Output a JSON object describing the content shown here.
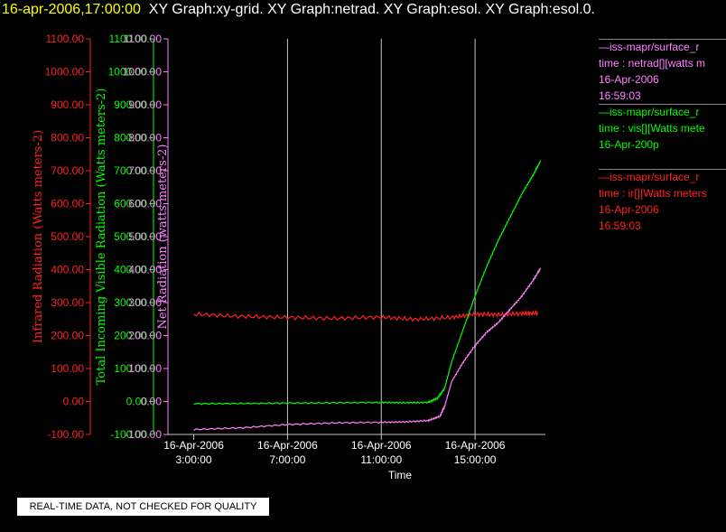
{
  "header": {
    "datetime": "16-apr-2006,17:00:00",
    "graphs": "XY Graph:xy-grid.  XY Graph:netrad.  XY Graph:esol.  XY Graph:esol.0."
  },
  "legend": [
    {
      "lines": [
        "—iss-mapr/surface_r",
        "time : netrad[][watts m",
        "16-Apr-2006",
        "16:59:03"
      ],
      "color": "#ff80ff"
    },
    {
      "lines": [
        "—iss-mapr/surface_r",
        "time : vis[][Watts mete",
        "16-Apr-200p"
      ],
      "color": "#00ff00"
    },
    {
      "lines": [
        "—iss-mapr/surface_r",
        "time : ir[][Watts meters",
        "16-Apr-2006",
        "16:59:03"
      ],
      "color": "#ff2020"
    }
  ],
  "disclaimer": "REAL-TIME DATA, NOT CHECKED FOR QUALITY",
  "chart_data": {
    "type": "line",
    "xlabel": "Time",
    "x_ticks": [
      {
        "x": 3,
        "label": [
          "16-Apr-2006",
          "3:00:00"
        ]
      },
      {
        "x": 7,
        "label": [
          "16-Apr-2006",
          "7:00:00"
        ]
      },
      {
        "x": 11,
        "label": [
          "16-Apr-2006",
          "11:00:00"
        ]
      },
      {
        "x": 15,
        "label": [
          "16-Apr-2006",
          "15:00:00"
        ]
      }
    ],
    "xlim": [
      1.9,
      18.0
    ],
    "grid_x": [
      7,
      11,
      15
    ],
    "y_ticks": [
      "-100.00",
      "0.00",
      "100.00",
      "200.00",
      "300.00",
      "400.00",
      "500.00",
      "600.00",
      "700.00",
      "800.00",
      "900.00",
      "1000.00",
      "1100.00"
    ],
    "ylim": [
      -100,
      1100
    ],
    "axes": [
      {
        "ylabel": "Infrared Radiation (Watts meters-2)",
        "color": "#ff2020"
      },
      {
        "ylabel": "Total Incoming Visible Radiation (Watts meters-2)",
        "color": "#00ff00"
      },
      {
        "ylabel": "Net Radiation (watts meters-2)",
        "color": "#ff80ff"
      }
    ],
    "series": [
      {
        "color": "#ff2020",
        "x": [
          3.0,
          5.0,
          7.0,
          9.0,
          11.0,
          12.5,
          14.0,
          15.0,
          16.0,
          17.0,
          17.7
        ],
        "y": [
          265,
          258,
          255,
          252,
          256,
          249,
          255,
          265,
          263,
          267,
          268
        ]
      },
      {
        "color": "#00ff00",
        "x": [
          3.0,
          5.0,
          7.0,
          9.0,
          11.0,
          12.0,
          13.0,
          13.4,
          13.7,
          14.0,
          14.5,
          15.0,
          15.5,
          16.0,
          16.5,
          17.0,
          17.5,
          17.8
        ],
        "y": [
          -7,
          -6,
          -5,
          -4,
          -3,
          -4,
          -3,
          10,
          40,
          120,
          220,
          320,
          410,
          490,
          560,
          630,
          690,
          730
        ]
      },
      {
        "color": "#ff80ff",
        "x": [
          3.0,
          5.0,
          7.0,
          9.0,
          11.0,
          12.0,
          13.0,
          13.5,
          13.7,
          14.0,
          14.5,
          15.0,
          15.5,
          16.0,
          16.5,
          17.0,
          17.5,
          17.8
        ],
        "y": [
          -85,
          -80,
          -70,
          -65,
          -63,
          -62,
          -58,
          -45,
          -15,
          60,
          120,
          170,
          210,
          240,
          280,
          320,
          370,
          405
        ]
      }
    ]
  }
}
